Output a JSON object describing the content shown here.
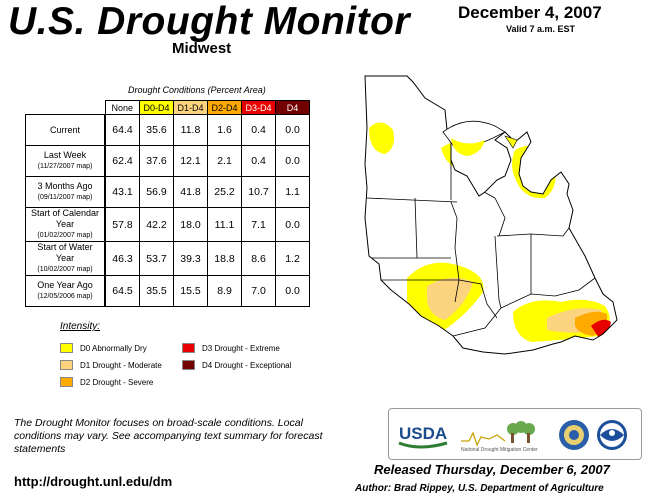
{
  "header": {
    "title": "U.S. Drought Monitor",
    "region": "Midwest",
    "date": "December 4, 2007",
    "valid": "Valid 7 a.m. EST"
  },
  "table": {
    "caption": "Drought Conditions (Percent Area)",
    "columns": [
      "None",
      "D0-D4",
      "D1-D4",
      "D2-D4",
      "D3-D4",
      "D4"
    ],
    "rows": [
      {
        "label": "Current",
        "sublabel": "",
        "values": [
          "64.4",
          "35.6",
          "11.8",
          "1.6",
          "0.4",
          "0.0"
        ]
      },
      {
        "label": "Last Week",
        "sublabel": "(11/27/2007 map)",
        "values": [
          "62.4",
          "37.6",
          "12.1",
          "2.1",
          "0.4",
          "0.0"
        ]
      },
      {
        "label": "3 Months Ago",
        "sublabel": "(09/11/2007 map)",
        "values": [
          "43.1",
          "56.9",
          "41.8",
          "25.2",
          "10.7",
          "1.1"
        ]
      },
      {
        "label": "Start of Calendar Year",
        "sublabel": "(01/02/2007 map)",
        "values": [
          "57.8",
          "42.2",
          "18.0",
          "11.1",
          "7.1",
          "0.0"
        ]
      },
      {
        "label": "Start of Water Year",
        "sublabel": "(10/02/2007 map)",
        "values": [
          "46.3",
          "53.7",
          "39.3",
          "18.8",
          "8.6",
          "1.2"
        ]
      },
      {
        "label": "One Year Ago",
        "sublabel": "(12/05/2006 map)",
        "values": [
          "64.5",
          "35.5",
          "15.5",
          "8.9",
          "7.0",
          "0.0"
        ]
      }
    ]
  },
  "legend": {
    "title": "Intensity:",
    "items": [
      {
        "label": "D0 Abnormally Dry",
        "color": "#ffff00"
      },
      {
        "label": "D1 Drought - Moderate",
        "color": "#fcd37f"
      },
      {
        "label": "D2 Drought - Severe",
        "color": "#ffaa00"
      },
      {
        "label": "D3 Drought - Extreme",
        "color": "#e60000"
      },
      {
        "label": "D4 Drought - Exceptional",
        "color": "#730000"
      }
    ]
  },
  "header_colors": [
    "#ffffff",
    "#ffff00",
    "#fcd37f",
    "#ffaa00",
    "#e60000",
    "#730000"
  ],
  "footnote": "The Drought Monitor focuses on broad-scale conditions. Local conditions may vary. See accompanying text summary for forecast statements",
  "url": "http://drought.unl.edu/dm",
  "released": "Released Thursday, December 6, 2007",
  "author": "Author: Brad Rippey, U.S. Department of Agriculture",
  "logos": {
    "usda": "USDA",
    "ndmc": "National Drought Mitigation Center",
    "doc_seal": "doc-seal-icon",
    "noaa": "noaa-icon"
  }
}
